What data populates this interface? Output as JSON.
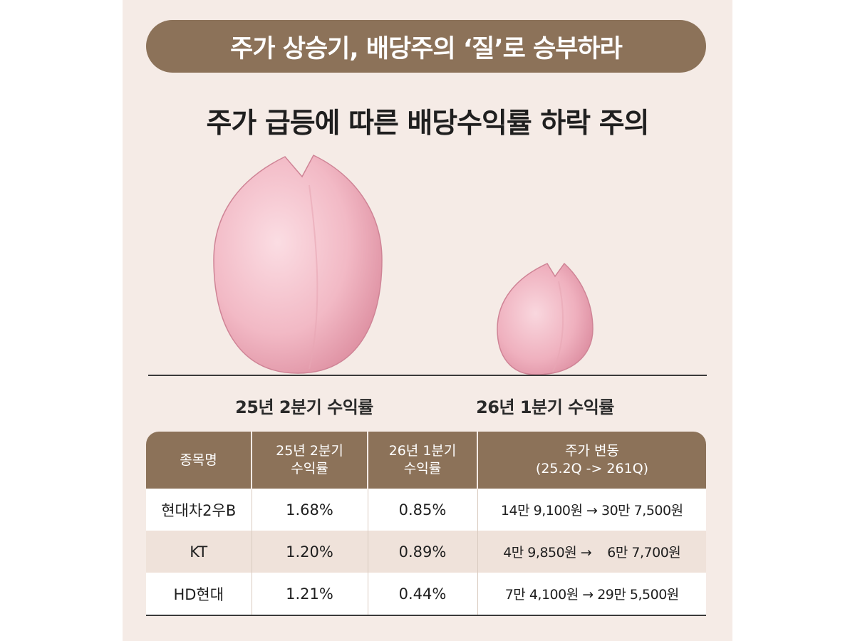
{
  "banner": {
    "title": "주가 상승기, 배당주의 ‘질’로 승부하라"
  },
  "headline": "주가 급등에 따른 배당수익률 하락 주의",
  "chart_data": {
    "type": "bar",
    "categories": [
      "25년 2분기 수익률",
      "26년 1분기 수익률"
    ],
    "title": "주가 급등에 따른 배당수익률 하락 주의"
  },
  "petal_labels": [
    "25년 2분기 수익률",
    "26년 1분기 수익률"
  ],
  "table": {
    "headers": [
      {
        "line1": "종목명",
        "line2": ""
      },
      {
        "line1": "25년 2분기",
        "line2": "수익률"
      },
      {
        "line1": "26년 1분기",
        "line2": "수익률"
      },
      {
        "line1": "주가 변동",
        "line2": "(25.2Q -> 261Q)"
      }
    ],
    "rows": [
      {
        "name": "현대차2우B",
        "q2_25": "1.68%",
        "q1_26": "0.85%",
        "change": "14만 9,100원 → 30만 7,500원"
      },
      {
        "name": "KT",
        "q2_25": "1.20%",
        "q1_26": "0.89%",
        "change": "4만 9,850원 →    6만 7,700원"
      },
      {
        "name": "HD현대",
        "q2_25": "1.21%",
        "q1_26": "0.44%",
        "change": "7만 4,100원 → 29만 5,500원"
      }
    ]
  },
  "colors": {
    "banner": "#8c7259",
    "panel": "#f5ebe6",
    "petal_light": "#f8d3da",
    "petal_dark": "#e295a5"
  }
}
